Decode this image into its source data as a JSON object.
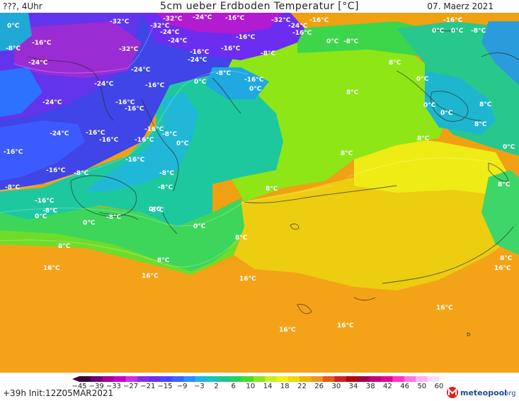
{
  "header": {
    "left": "???, 4Uhr",
    "title": "5cm ueber Erdboden Temperatur [°C]",
    "date": "07. Maerz 2021"
  },
  "footer": {
    "run_info": "+39h Init:12Z05MAR2021",
    "logo_text": "meteopool",
    "logo_suffix": ".org"
  },
  "legend": {
    "ticks": [
      "−45",
      "−39",
      "−33",
      "−27",
      "−21",
      "−15",
      "−9",
      "−3",
      "2",
      "6",
      "10",
      "14",
      "18",
      "22",
      "26",
      "30",
      "34",
      "38",
      "42",
      "46",
      "50",
      "60"
    ],
    "colors": [
      "#3a0035",
      "#6b0070",
      "#a0009a",
      "#c400c4",
      "#d22ee0",
      "#8a2be2",
      "#6a2ff0",
      "#4646ff",
      "#3c64ff",
      "#2d8cff",
      "#20b4e6",
      "#18c8b4",
      "#20c88c",
      "#28d25a",
      "#46dc28",
      "#8ce61e",
      "#c8f01e",
      "#f0f014",
      "#f0d70a",
      "#f0b40a",
      "#f0961e",
      "#e65a14",
      "#d21e1e",
      "#b4000a",
      "#a0004b",
      "#c80078",
      "#e60096",
      "#ff32c8",
      "#ff78dc",
      "#ffb4f0",
      "#ffdcf8"
    ]
  },
  "map_labels": {
    "m32a": "-32°C",
    "m32b": "-32°C",
    "m32c": "-32°C",
    "m32d": "-32°C",
    "m32e": "-32°C",
    "m24a": "-24°C",
    "m24b": "-24°C",
    "m24c": "-24°C",
    "m24d": "-24°C",
    "m24e": "-24°C",
    "m24f": "-24°C",
    "m24g": "-24°C",
    "m24h": "-24°C",
    "m24i": "-24°C",
    "m24j": "-24°C",
    "m16a": "-16°C",
    "m16b": "-16°C",
    "m16c": "-16°C",
    "m16d": "-16°C",
    "m16e": "-16°C",
    "m16f": "-16°C",
    "m16g": "-16°C",
    "m16h": "-16°C",
    "m16i": "-16°C",
    "m16j": "-16°C",
    "m16k": "-16°C",
    "m16l": "-16°C",
    "m16m": "-16°C",
    "m16n": "-16°C",
    "m16o": "-16°C",
    "m16p": "-16°C",
    "m16q": "-16°C",
    "m16r": "-16°C",
    "m16s": "-16°C",
    "m8a": "-8°C",
    "m8b": "-8°C",
    "m8c": "-8°C",
    "m8d": "-8°C",
    "m8e": "-8°C",
    "m8f": "-8°C",
    "m8g": "-8°C",
    "m8h": "-8°C",
    "m8i": "-8°C",
    "m8j": "-8°C",
    "m8k": "-8°C",
    "m8l": "-8°C",
    "m8m": "-8°C",
    "m8n": "-8°C",
    "z0a": "0°C",
    "z0b": "0°C",
    "z0c": "0°C",
    "z0d": "0°C",
    "z0e": "0°C",
    "z0f": "0°C",
    "z0g": "0°C",
    "z0h": "0°C",
    "z0i": "0°C",
    "z0j": "0°C",
    "z0k": "0°C",
    "z0l": "0°C",
    "z0m": "0°C",
    "z0n": "0°C",
    "z0o": "0°C",
    "p8a": "8°C",
    "p8b": "8°C",
    "p8c": "8°C",
    "p8d": "8°C",
    "p8e": "8°C",
    "p8f": "8°C",
    "p8g": "8°C",
    "p8h": "8°C",
    "p8i": "8°C",
    "p8j": "8°C",
    "p8k": "8°C",
    "p8l": "8°C",
    "p16a": "16°C",
    "p16b": "16°C",
    "p16c": "16°C",
    "p16d": "16°C",
    "p16e": "16°C",
    "p16f": "16°C",
    "p16g": "16°C",
    "p16h": "16°C"
  }
}
